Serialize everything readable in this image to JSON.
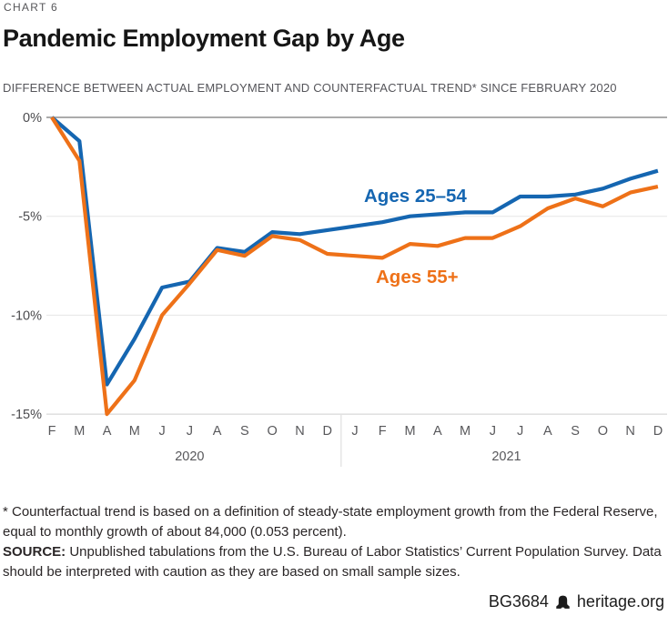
{
  "eyebrow": "CHART 6",
  "title": "Pandemic Employment Gap by Age",
  "subtitle": "DIFFERENCE BETWEEN ACTUAL EMPLOYMENT AND COUNTERFACTUAL TREND* SINCE FEBRUARY 2020",
  "chart_data": {
    "type": "line",
    "x_labels": [
      "F",
      "M",
      "A",
      "M",
      "J",
      "J",
      "A",
      "S",
      "O",
      "N",
      "D",
      "J",
      "F",
      "M",
      "A",
      "M",
      "J",
      "J",
      "A",
      "S",
      "O",
      "N",
      "D"
    ],
    "year_groups": [
      {
        "label": "2020",
        "start": 0,
        "end": 10
      },
      {
        "label": "2021",
        "start": 11,
        "end": 22
      }
    ],
    "y_ticks": [
      0,
      -5,
      -10,
      -15
    ],
    "y_tick_labels": [
      "0%",
      "-5%",
      "-10%",
      "-15%"
    ],
    "ylim": [
      -15,
      0
    ],
    "ylabel": "",
    "xlabel": "",
    "grid": true,
    "legend_position": "inline-labels",
    "series": [
      {
        "name": "Ages 25–54",
        "color": "#1566b1",
        "values": [
          0,
          -1.2,
          -13.5,
          -11.2,
          -8.6,
          -8.3,
          -6.6,
          -6.8,
          -5.8,
          -5.9,
          -5.7,
          -5.5,
          -5.3,
          -5.0,
          -4.9,
          -4.8,
          -4.8,
          -4.0,
          -4.0,
          -3.9,
          -3.6,
          -3.1,
          -2.7
        ]
      },
      {
        "name": "Ages 55+",
        "color": "#ee7118",
        "values": [
          0,
          -2.2,
          -15.0,
          -13.3,
          -10.0,
          -8.4,
          -6.7,
          -7.0,
          -6.0,
          -6.2,
          -6.9,
          -7.0,
          -7.1,
          -6.4,
          -6.5,
          -6.1,
          -6.1,
          -5.5,
          -4.6,
          -4.1,
          -4.5,
          -3.8,
          -3.5
        ]
      }
    ]
  },
  "footnote": {
    "note": "* Counterfactual trend is based on a definition of steady-state employment growth from the Federal Reserve, equal to monthly growth of about 84,000 (0.053 percent).",
    "source_label": "SOURCE:",
    "source_text": " Unpublished tabulations from the U.S. Bureau of Labor Statistics’ Current Population Survey. Data should be interpreted with caution as they are based on small sample sizes."
  },
  "footer": {
    "doc_id": "BG3684",
    "site": "heritage.org",
    "bell_icon": "liberty-bell-icon"
  }
}
